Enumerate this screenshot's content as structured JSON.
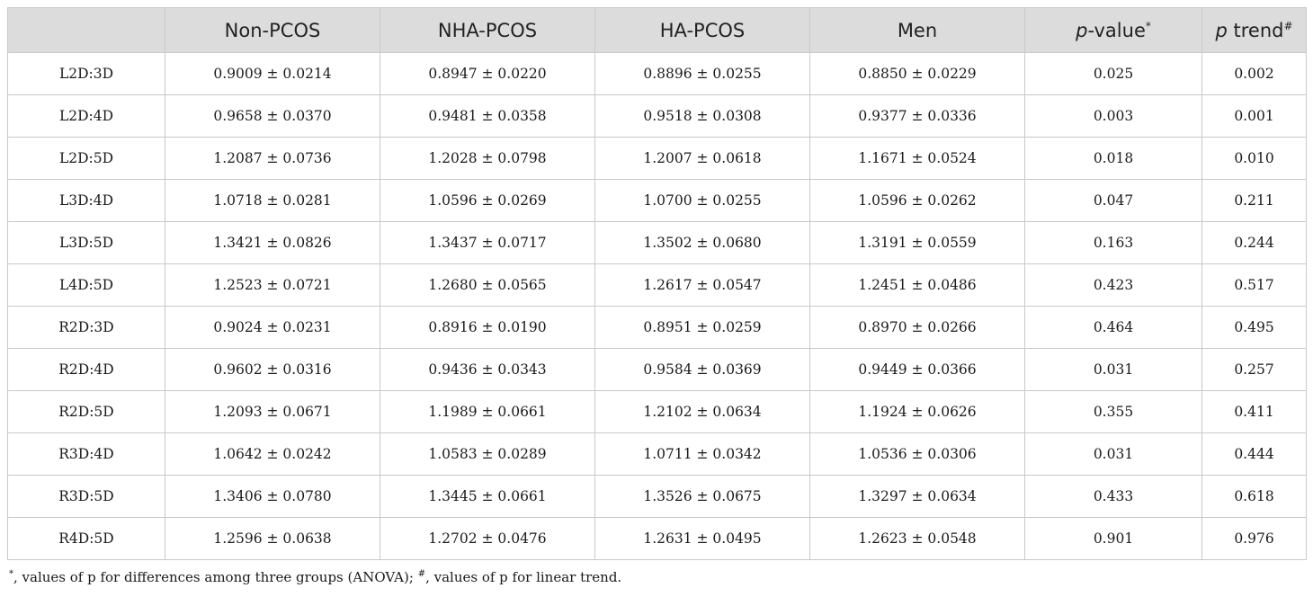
{
  "table": {
    "columns": [
      {
        "label": ""
      },
      {
        "label": "Non-PCOS"
      },
      {
        "label": "NHA-PCOS"
      },
      {
        "label": "HA-PCOS"
      },
      {
        "label": "Men"
      },
      {
        "label_italic": "p",
        "label_rest": "-value",
        "label_sup": "*"
      },
      {
        "label_italic": "p",
        "label_rest": " trend",
        "label_sup": "#"
      }
    ],
    "rows": [
      [
        "L2D:3D",
        "0.9009 ± 0.0214",
        "0.8947 ± 0.0220",
        "0.8896 ± 0.0255",
        "0.8850 ± 0.0229",
        "0.025",
        "0.002"
      ],
      [
        "L2D:4D",
        "0.9658 ± 0.0370",
        "0.9481 ± 0.0358",
        "0.9518 ± 0.0308",
        "0.9377 ± 0.0336",
        "0.003",
        "0.001"
      ],
      [
        "L2D:5D",
        "1.2087 ± 0.0736",
        "1.2028 ± 0.0798",
        "1.2007 ± 0.0618",
        "1.1671 ± 0.0524",
        "0.018",
        "0.010"
      ],
      [
        "L3D:4D",
        "1.0718 ± 0.0281",
        "1.0596 ± 0.0269",
        "1.0700 ± 0.0255",
        "1.0596 ± 0.0262",
        "0.047",
        "0.211"
      ],
      [
        "L3D:5D",
        "1.3421 ± 0.0826",
        "1.3437 ± 0.0717",
        "1.3502 ± 0.0680",
        "1.3191 ± 0.0559",
        "0.163",
        "0.244"
      ],
      [
        "L4D:5D",
        "1.2523 ± 0.0721",
        "1.2680 ± 0.0565",
        "1.2617 ± 0.0547",
        "1.2451 ± 0.0486",
        "0.423",
        "0.517"
      ],
      [
        "R2D:3D",
        "0.9024 ± 0.0231",
        "0.8916 ± 0.0190",
        "0.8951 ± 0.0259",
        "0.8970 ± 0.0266",
        "0.464",
        "0.495"
      ],
      [
        "R2D:4D",
        "0.9602 ± 0.0316",
        "0.9436 ± 0.0343",
        "0.9584 ± 0.0369",
        "0.9449 ± 0.0366",
        "0.031",
        "0.257"
      ],
      [
        "R2D:5D",
        "1.2093 ± 0.0671",
        "1.1989 ± 0.0661",
        "1.2102 ± 0.0634",
        "1.1924 ± 0.0626",
        "0.355",
        "0.411"
      ],
      [
        "R3D:4D",
        "1.0642 ± 0.0242",
        "1.0583 ± 0.0289",
        "1.0711 ± 0.0342",
        "1.0536 ± 0.0306",
        "0.031",
        "0.444"
      ],
      [
        "R3D:5D",
        "1.3406 ± 0.0780",
        "1.3445 ± 0.0661",
        "1.3526 ± 0.0675",
        "1.3297 ± 0.0634",
        "0.433",
        "0.618"
      ],
      [
        "R4D:5D",
        "1.2596 ± 0.0638",
        "1.2702 ± 0.0476",
        "1.2631 ± 0.0495",
        "1.2623 ± 0.0548",
        "0.901",
        "0.976"
      ]
    ]
  },
  "footnote": {
    "sym1": "*",
    "text1": ", values of p for differences among three groups (ANOVA); ",
    "sym2": "#",
    "text2": ", values of p for linear trend."
  },
  "colors": {
    "header_bg": "#dcdcdc",
    "border": "#c9c9c9",
    "text": "#1a1a1a"
  }
}
